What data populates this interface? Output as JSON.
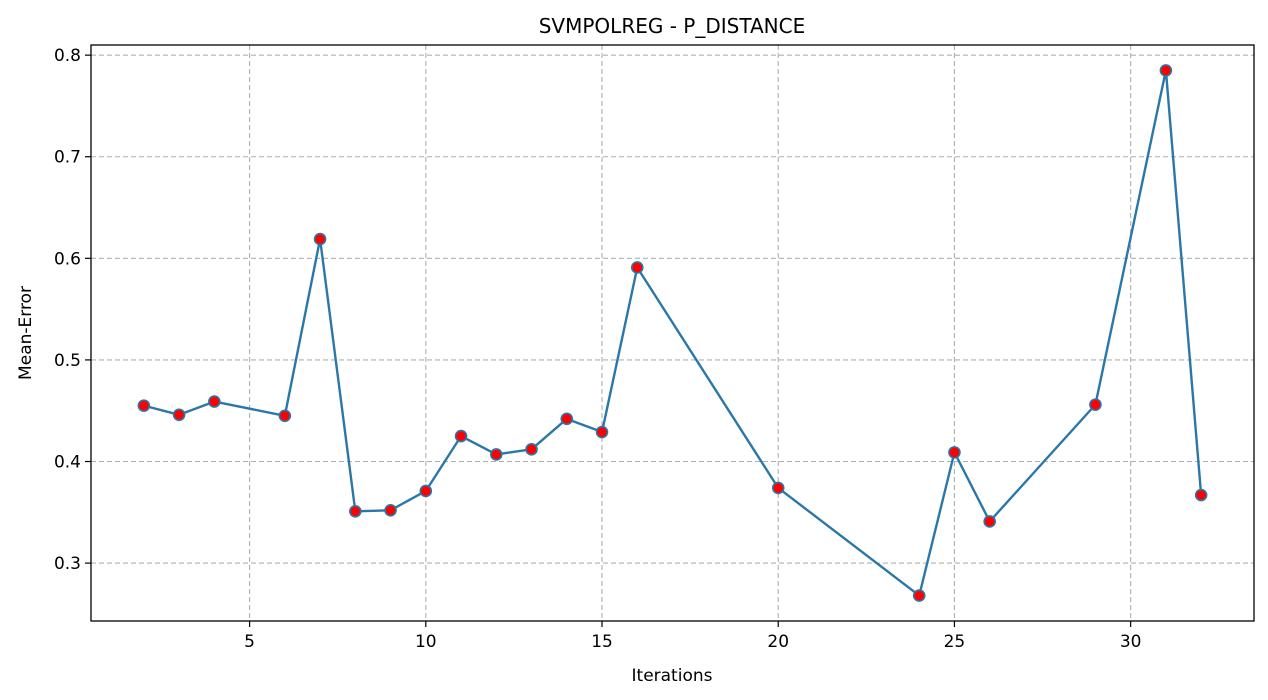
{
  "chart_data": {
    "type": "line",
    "title": "SVMPOLREG - P_DISTANCE",
    "xlabel": "Iterations",
    "ylabel": "Mean-Error",
    "xlim": [
      0.5,
      33.5
    ],
    "ylim": [
      0.243,
      0.81
    ],
    "xticks": [
      5,
      10,
      15,
      20,
      25,
      30
    ],
    "yticks": [
      0.3,
      0.4,
      0.5,
      0.6,
      0.7,
      0.8
    ],
    "xtick_labels": [
      "5",
      "10",
      "15",
      "20",
      "25",
      "30"
    ],
    "ytick_labels": [
      "0.3",
      "0.4",
      "0.5",
      "0.6",
      "0.7",
      "0.8"
    ],
    "grid": true,
    "colors": {
      "line": "#2a77a8",
      "marker_fill": "#ff0000",
      "marker_edge": "#2a77a8",
      "grid": "#b0b0b0"
    },
    "series": [
      {
        "x": [
          2,
          3,
          4,
          6,
          7,
          8,
          9,
          10,
          11,
          12,
          13,
          14,
          15,
          16,
          20,
          24,
          25,
          26,
          29,
          31,
          32
        ],
        "y": [
          0.455,
          0.446,
          0.459,
          0.445,
          0.619,
          0.351,
          0.352,
          0.371,
          0.425,
          0.407,
          0.412,
          0.442,
          0.429,
          0.591,
          0.374,
          0.268,
          0.409,
          0.341,
          0.456,
          0.785,
          0.367
        ]
      }
    ]
  }
}
